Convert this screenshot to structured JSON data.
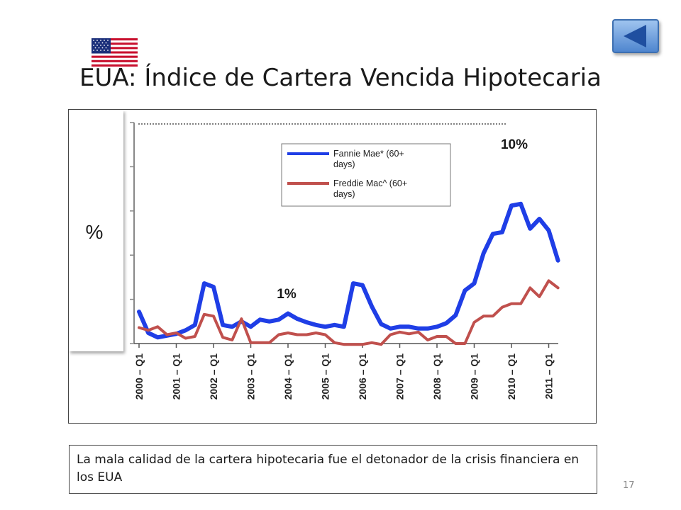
{
  "slide": {
    "title": "EUA: Índice de Cartera Vencida Hipotecaria",
    "caption": "La mala calidad de la cartera hipotecaria fue el detonador de la crisis financiera en los EUA",
    "page_number": "17",
    "back_icon": "back-triangle-icon",
    "flag_icon": "us-flag-icon"
  },
  "chart_data": {
    "type": "line",
    "title": "",
    "ylabel": "%",
    "xlabel": "",
    "ylim": [
      0,
      12.5
    ],
    "grid": false,
    "legend_position": "top-center",
    "x_ticks": [
      "2000 – Q1",
      "2001 – Q1",
      "2002 – Q1",
      "2003 – Q1",
      "2004 – Q1",
      "2005 – Q1",
      "2006 – Q1",
      "2007 – Q1",
      "2008 – Q1",
      "2009 – Q1",
      "2010 – Q1",
      "2011 – Q1"
    ],
    "annotations": [
      "1%",
      "10%"
    ],
    "series": [
      {
        "name": "Fannie Mae* (60+ days)",
        "color": "#1f3ee6",
        "points": [
          [
            2000.0,
            1.8
          ],
          [
            2000.25,
            0.6
          ],
          [
            2000.5,
            0.35
          ],
          [
            2000.75,
            0.45
          ],
          [
            2001.0,
            0.55
          ],
          [
            2001.25,
            0.75
          ],
          [
            2001.5,
            1.05
          ],
          [
            2001.75,
            3.4
          ],
          [
            2002.0,
            3.2
          ],
          [
            2002.25,
            1.05
          ],
          [
            2002.5,
            0.95
          ],
          [
            2002.75,
            1.25
          ],
          [
            2003.0,
            0.95
          ],
          [
            2003.25,
            1.35
          ],
          [
            2003.5,
            1.25
          ],
          [
            2003.75,
            1.35
          ],
          [
            2004.0,
            1.7
          ],
          [
            2004.25,
            1.4
          ],
          [
            2004.5,
            1.2
          ],
          [
            2004.75,
            1.05
          ],
          [
            2005.0,
            0.95
          ],
          [
            2005.25,
            1.05
          ],
          [
            2005.5,
            0.95
          ],
          [
            2005.75,
            3.4
          ],
          [
            2006.0,
            3.3
          ],
          [
            2006.25,
            2.1
          ],
          [
            2006.5,
            1.1
          ],
          [
            2006.75,
            0.85
          ],
          [
            2007.0,
            0.95
          ],
          [
            2007.25,
            0.95
          ],
          [
            2007.5,
            0.85
          ],
          [
            2007.75,
            0.85
          ],
          [
            2008.0,
            0.95
          ],
          [
            2008.25,
            1.15
          ],
          [
            2008.5,
            1.6
          ],
          [
            2008.75,
            3.0
          ],
          [
            2009.0,
            3.4
          ],
          [
            2009.25,
            5.1
          ],
          [
            2009.5,
            6.2
          ],
          [
            2009.75,
            6.3
          ],
          [
            2010.0,
            7.8
          ],
          [
            2010.25,
            7.9
          ],
          [
            2010.5,
            6.5
          ],
          [
            2010.75,
            7.05
          ],
          [
            2011.0,
            6.4
          ],
          [
            2011.25,
            4.7
          ]
        ]
      },
      {
        "name": "Freddie Mac^ (60+ days)",
        "color": "#c0504d",
        "points": [
          [
            2000.0,
            0.9
          ],
          [
            2000.25,
            0.75
          ],
          [
            2000.5,
            0.95
          ],
          [
            2000.75,
            0.5
          ],
          [
            2001.0,
            0.6
          ],
          [
            2001.25,
            0.3
          ],
          [
            2001.5,
            0.4
          ],
          [
            2001.75,
            1.65
          ],
          [
            2002.0,
            1.55
          ],
          [
            2002.25,
            0.35
          ],
          [
            2002.5,
            0.2
          ],
          [
            2002.75,
            1.4
          ],
          [
            2003.0,
            0.05
          ],
          [
            2003.25,
            0.05
          ],
          [
            2003.5,
            0.05
          ],
          [
            2003.75,
            0.5
          ],
          [
            2004.0,
            0.6
          ],
          [
            2004.25,
            0.5
          ],
          [
            2004.5,
            0.5
          ],
          [
            2004.75,
            0.6
          ],
          [
            2005.0,
            0.5
          ],
          [
            2005.25,
            0.05
          ],
          [
            2005.5,
            -0.05
          ],
          [
            2005.75,
            -0.05
          ],
          [
            2006.0,
            -0.05
          ],
          [
            2006.25,
            0.05
          ],
          [
            2006.5,
            -0.05
          ],
          [
            2006.75,
            0.5
          ],
          [
            2007.0,
            0.65
          ],
          [
            2007.25,
            0.55
          ],
          [
            2007.5,
            0.65
          ],
          [
            2007.75,
            0.2
          ],
          [
            2008.0,
            0.4
          ],
          [
            2008.25,
            0.4
          ],
          [
            2008.5,
            0.0
          ],
          [
            2008.75,
            0.0
          ],
          [
            2009.0,
            1.2
          ],
          [
            2009.25,
            1.55
          ],
          [
            2009.5,
            1.55
          ],
          [
            2009.75,
            2.05
          ],
          [
            2010.0,
            2.25
          ],
          [
            2010.25,
            2.25
          ],
          [
            2010.5,
            3.15
          ],
          [
            2010.75,
            2.65
          ],
          [
            2011.0,
            3.55
          ],
          [
            2011.25,
            3.15
          ]
        ]
      }
    ]
  }
}
